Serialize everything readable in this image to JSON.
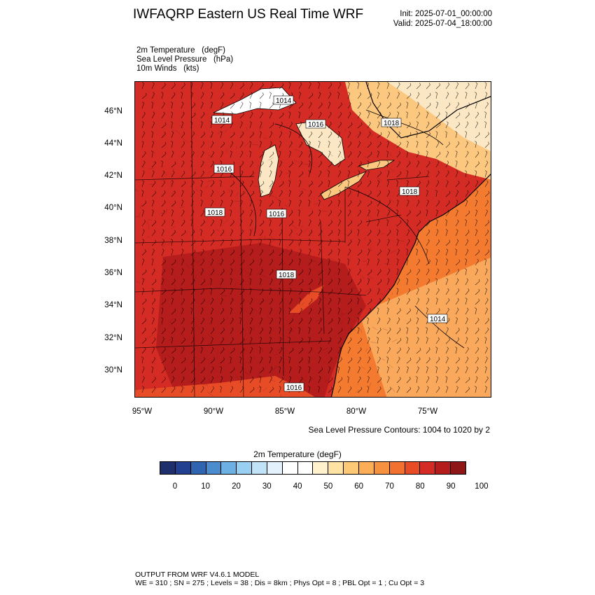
{
  "header": {
    "title": "IWFAQRP Eastern US Real Time WRF",
    "init": "Init: 2025-07-01_00:00:00",
    "valid": "Valid: 2025-07-04_18:00:00"
  },
  "fields": {
    "temp": "2m Temperature   (degF)",
    "slp": "Sea Level Pressure   (hPa)",
    "wind": "10m Winds   (kts)"
  },
  "map": {
    "lat_labels": [
      "46°N",
      "44°N",
      "42°N",
      "40°N",
      "38°N",
      "36°N",
      "34°N",
      "32°N",
      "30°N"
    ],
    "lon_labels": [
      "95°W",
      "90°W",
      "85°W",
      "80°W",
      "75°W"
    ],
    "isobar_labels": [
      "1014",
      "1016",
      "1018",
      "1018",
      "1014",
      "1016",
      "1016",
      "1018",
      "1014",
      "1016",
      "1018"
    ],
    "colors": {
      "hot_land": "#d42b24",
      "very_hot": "#b51c1c",
      "warm": "#e84c26",
      "ocean": "#f47a2f",
      "cool_ocean": "#f9a85c",
      "mild": "#fcc77e",
      "lake": "#fbe7c3",
      "cold_lake": "#ffffff"
    }
  },
  "contour_note": "Sea Level Pressure Contours: 1004 to 1020 by 2",
  "colorbar": {
    "title": "2m Temperature  (degF)",
    "colors": [
      "#1e2f6b",
      "#233f8f",
      "#2f65b0",
      "#4a8ccd",
      "#6cb0e4",
      "#99d0f2",
      "#c0e3f7",
      "#e2f1fb",
      "#ffffff",
      "#ffffff",
      "#fff2cc",
      "#fde2a3",
      "#fdc977",
      "#fbae55",
      "#f69140",
      "#f2712f",
      "#e84c26",
      "#d42b24",
      "#b51c1c",
      "#8e1616"
    ],
    "ticks": [
      "0",
      "10",
      "20",
      "30",
      "40",
      "50",
      "60",
      "70",
      "80",
      "90",
      "100"
    ]
  },
  "footer": {
    "line1": "OUTPUT FROM WRF V4.6.1 MODEL",
    "line2": "WE = 310 ; SN = 275 ; Levels = 38 ; Dis = 8km ; Phys Opt = 8 ; PBL Opt = 1 ; Cu Opt = 3"
  }
}
